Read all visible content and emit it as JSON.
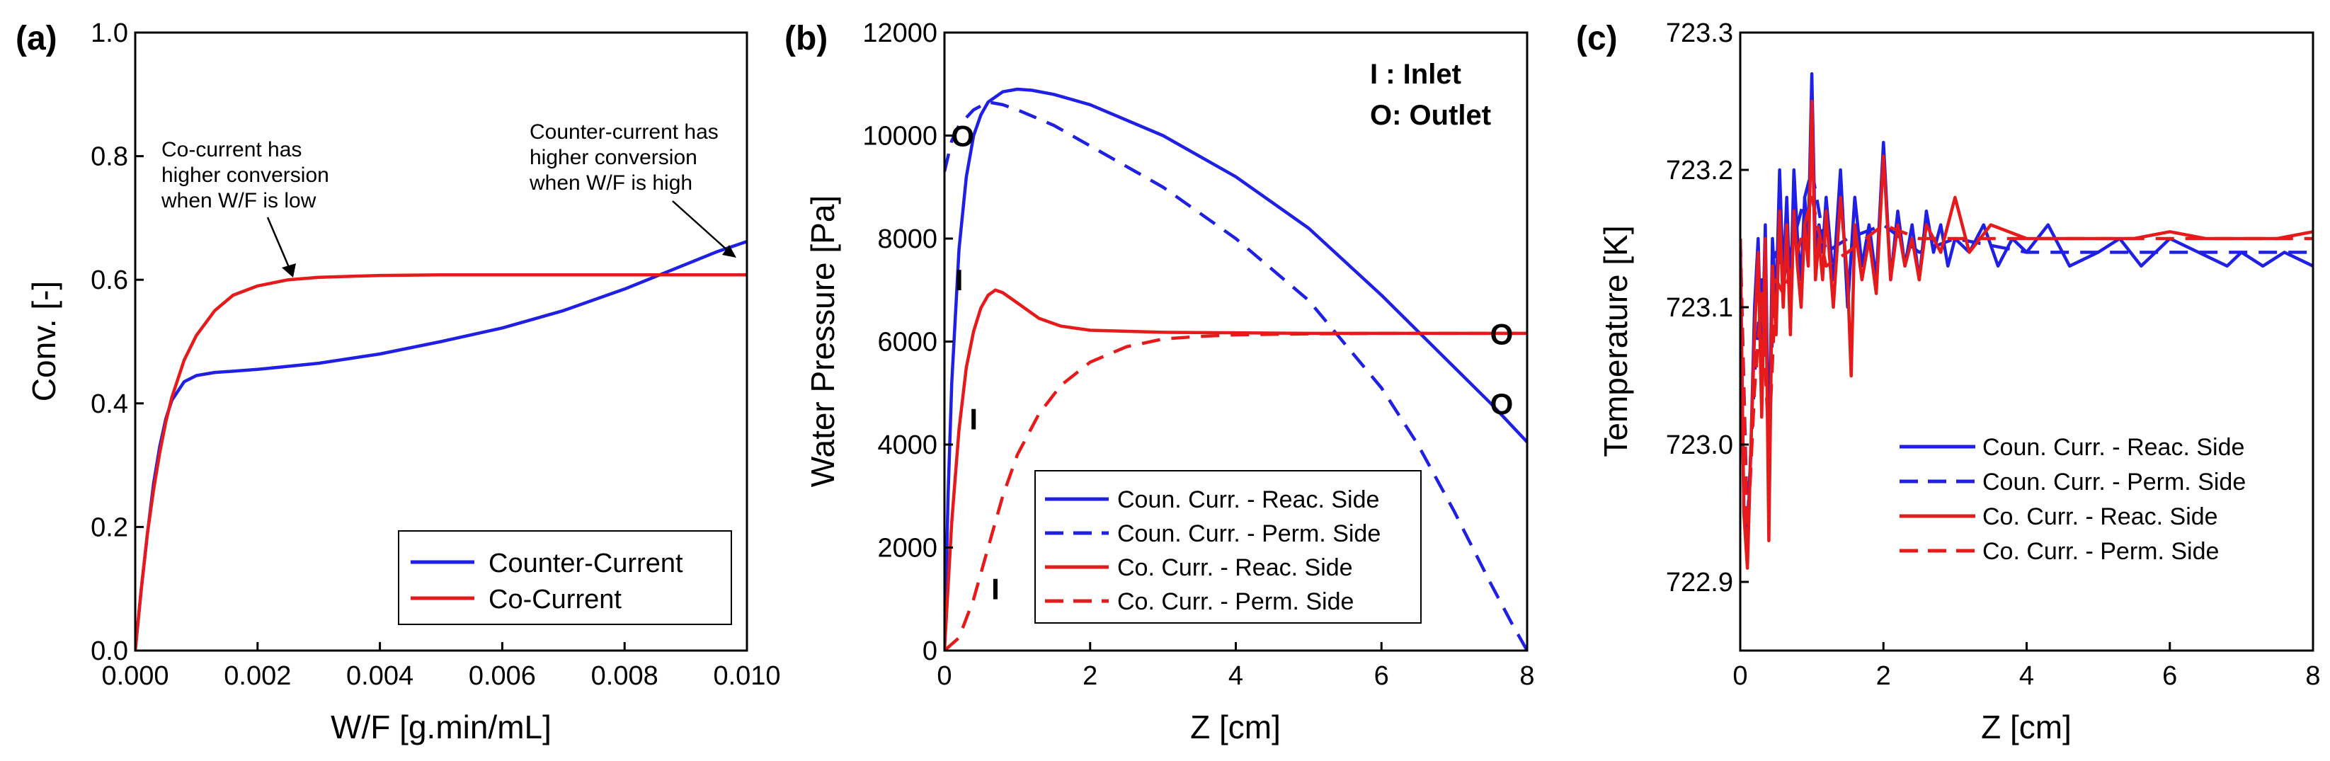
{
  "figure": {
    "panels": [
      "(a)",
      "(b)",
      "(c)"
    ]
  },
  "chart_data": [
    {
      "panel": "(a)",
      "type": "line",
      "xlabel": "W/F [g.min/mL]",
      "ylabel": "Conv. [-]",
      "xlim": [
        0,
        0.01
      ],
      "ylim": [
        0,
        1.0
      ],
      "xticks": [
        0,
        0.002,
        0.004,
        0.006,
        0.008,
        0.01
      ],
      "xtick_labels": [
        "0.000",
        "0.002",
        "0.004",
        "0.006",
        "0.008",
        "0.010"
      ],
      "yticks": [
        0,
        0.2,
        0.4,
        0.6,
        0.8,
        1.0
      ],
      "ytick_labels": [
        "0.0",
        "0.2",
        "0.4",
        "0.6",
        "0.8",
        "1.0"
      ],
      "legend_position": "bottom-right",
      "series": [
        {
          "name": "Counter-Current",
          "color": "#1f1fe6",
          "dash": "solid",
          "x": [
            0,
            0.0001,
            0.0002,
            0.0003,
            0.0004,
            0.0005,
            0.0006,
            0.0008,
            0.001,
            0.0013,
            0.0016,
            0.002,
            0.003,
            0.004,
            0.005,
            0.006,
            0.007,
            0.008,
            0.009,
            0.0095,
            0.01
          ],
          "values": [
            0,
            0.1,
            0.19,
            0.27,
            0.33,
            0.375,
            0.405,
            0.435,
            0.445,
            0.45,
            0.452,
            0.455,
            0.465,
            0.48,
            0.5,
            0.522,
            0.55,
            0.585,
            0.625,
            0.645,
            0.662
          ]
        },
        {
          "name": "Co-Current",
          "color": "#e61a1a",
          "dash": "solid",
          "x": [
            0,
            0.0001,
            0.0002,
            0.0003,
            0.0004,
            0.0005,
            0.0006,
            0.0008,
            0.001,
            0.0013,
            0.0016,
            0.002,
            0.0025,
            0.003,
            0.004,
            0.005,
            0.006,
            0.007,
            0.008,
            0.009,
            0.01
          ],
          "values": [
            0,
            0.1,
            0.19,
            0.26,
            0.32,
            0.37,
            0.41,
            0.47,
            0.51,
            0.55,
            0.575,
            0.59,
            0.6,
            0.604,
            0.607,
            0.608,
            0.608,
            0.608,
            0.608,
            0.608,
            0.608
          ]
        }
      ],
      "annotations": [
        {
          "lines": [
            "Co-current has",
            "higher conversion",
            "when W/F is low"
          ],
          "arrow_to": [
            0.0025,
            0.605
          ]
        },
        {
          "lines": [
            "Counter-current has",
            "higher conversion",
            "when W/F is high"
          ],
          "arrow_to": [
            0.01,
            0.655
          ]
        }
      ]
    },
    {
      "panel": "(b)",
      "type": "line",
      "xlabel": "Z [cm]",
      "ylabel": "Water Pressure [Pa]",
      "xlim": [
        0,
        8
      ],
      "ylim": [
        0,
        12000
      ],
      "xticks": [
        0,
        2,
        4,
        6,
        8
      ],
      "xtick_labels": [
        "0",
        "2",
        "4",
        "6",
        "8"
      ],
      "yticks": [
        0,
        2000,
        4000,
        6000,
        8000,
        10000,
        12000
      ],
      "ytick_labels": [
        "0",
        "2000",
        "4000",
        "6000",
        "8000",
        "10000",
        "12000"
      ],
      "io_legend": [
        "I : Inlet",
        "O: Outlet"
      ],
      "legend_position": "bottom-center",
      "series": [
        {
          "name": "Coun. Curr. - Reac. Side",
          "color": "#1f1fe6",
          "dash": "solid",
          "x": [
            0,
            0.05,
            0.1,
            0.2,
            0.3,
            0.4,
            0.5,
            0.6,
            0.8,
            1.0,
            1.2,
            1.5,
            2,
            3,
            4,
            5,
            6,
            7,
            7.5,
            8
          ],
          "values": [
            0,
            3000,
            5200,
            7800,
            9200,
            10000,
            10400,
            10650,
            10850,
            10900,
            10880,
            10800,
            10600,
            10000,
            9200,
            8200,
            6900,
            5500,
            4800,
            4050
          ]
        },
        {
          "name": "Coun. Curr. - Perm. Side",
          "color": "#1f1fe6",
          "dash": "dashed",
          "x": [
            0,
            0.1,
            0.2,
            0.4,
            0.6,
            0.8,
            1.0,
            1.5,
            2,
            3,
            4,
            5,
            6,
            6.5,
            7,
            7.5,
            7.8,
            8
          ],
          "values": [
            9300,
            9900,
            10200,
            10500,
            10650,
            10600,
            10500,
            10200,
            9800,
            9000,
            8000,
            6800,
            5100,
            4000,
            2700,
            1300,
            500,
            0
          ]
        },
        {
          "name": "Co. Curr. - Reac. Side",
          "color": "#e61a1a",
          "dash": "solid",
          "x": [
            0,
            0.1,
            0.2,
            0.3,
            0.4,
            0.5,
            0.6,
            0.7,
            0.8,
            1.0,
            1.3,
            1.6,
            2,
            3,
            4,
            5,
            6,
            7,
            8
          ],
          "values": [
            0,
            2500,
            4300,
            5500,
            6200,
            6650,
            6900,
            7000,
            6950,
            6750,
            6450,
            6300,
            6220,
            6180,
            6170,
            6160,
            6160,
            6160,
            6160
          ]
        },
        {
          "name": "Co. Curr. - Perm. Side",
          "color": "#e61a1a",
          "dash": "dashed",
          "x": [
            0,
            0.2,
            0.4,
            0.6,
            0.8,
            1.0,
            1.3,
            1.6,
            2,
            2.5,
            3,
            3.5,
            4,
            5,
            6,
            7,
            8
          ],
          "values": [
            0,
            250,
            1000,
            2000,
            3000,
            3800,
            4600,
            5150,
            5600,
            5900,
            6050,
            6100,
            6130,
            6150,
            6160,
            6160,
            6160
          ]
        }
      ],
      "markers": [
        {
          "text": "O",
          "x": 0.25,
          "y": 10000
        },
        {
          "text": "I",
          "x": 0.2,
          "y": 7200
        },
        {
          "text": "I",
          "x": 0.4,
          "y": 4500
        },
        {
          "text": "I",
          "x": 0.7,
          "y": 1200
        },
        {
          "text": "O",
          "x": 7.65,
          "y": 6150
        },
        {
          "text": "O",
          "x": 7.65,
          "y": 4800
        }
      ]
    },
    {
      "panel": "(c)",
      "type": "line",
      "xlabel": "Z [cm]",
      "ylabel": "Temperature [K]",
      "xlim": [
        0,
        8
      ],
      "ylim": [
        722.85,
        723.3
      ],
      "xticks": [
        0,
        2,
        4,
        6,
        8
      ],
      "xtick_labels": [
        "0",
        "2",
        "4",
        "6",
        "8"
      ],
      "yticks": [
        722.9,
        723.0,
        723.1,
        723.2,
        723.3
      ],
      "ytick_labels": [
        "722.9",
        "723.0",
        "723.1",
        "723.2",
        "723.3"
      ],
      "legend_position": "bottom-right",
      "series": [
        {
          "name": "Coun. Curr. - Reac. Side",
          "color": "#1f1fe6",
          "dash": "solid",
          "x": [
            0,
            0.05,
            0.1,
            0.15,
            0.2,
            0.25,
            0.3,
            0.35,
            0.4,
            0.45,
            0.5,
            0.55,
            0.6,
            0.65,
            0.7,
            0.75,
            0.8,
            0.85,
            0.9,
            0.95,
            1.0,
            1.05,
            1.1,
            1.15,
            1.2,
            1.3,
            1.4,
            1.5,
            1.6,
            1.7,
            1.8,
            1.9,
            2.0,
            2.1,
            2.2,
            2.3,
            2.4,
            2.5,
            2.6,
            2.7,
            2.8,
            2.9,
            3.0,
            3.2,
            3.4,
            3.6,
            3.8,
            4.0,
            4.3,
            4.6,
            5.0,
            5.3,
            5.6,
            6.0,
            6.4,
            6.8,
            7.0,
            7.3,
            7.6,
            8.0
          ],
          "values": [
            723.15,
            722.95,
            722.93,
            723.0,
            723.1,
            723.15,
            723.05,
            723.16,
            722.98,
            723.15,
            723.1,
            723.2,
            723.12,
            723.18,
            723.1,
            723.2,
            723.15,
            723.12,
            723.18,
            723.15,
            723.27,
            723.14,
            723.16,
            723.14,
            723.18,
            723.12,
            723.2,
            723.1,
            723.18,
            723.13,
            723.16,
            723.12,
            723.22,
            723.12,
            723.17,
            723.13,
            723.16,
            723.12,
            723.17,
            723.14,
            723.16,
            723.13,
            723.15,
            723.14,
            723.16,
            723.13,
            723.15,
            723.14,
            723.16,
            723.13,
            723.14,
            723.15,
            723.13,
            723.15,
            723.14,
            723.13,
            723.14,
            723.13,
            723.14,
            723.13
          ]
        },
        {
          "name": "Coun. Curr. - Perm. Side",
          "color": "#1f1fe6",
          "dash": "dashed",
          "x": [
            0,
            0.1,
            0.2,
            0.3,
            0.4,
            0.5,
            0.6,
            0.8,
            1.0,
            1.2,
            1.5,
            2.0,
            2.5,
            3.0,
            4.0,
            5.0,
            6.0,
            7.0,
            8.0
          ],
          "values": [
            723.15,
            722.94,
            723.05,
            723.12,
            723.02,
            723.14,
            723.12,
            723.16,
            723.2,
            723.14,
            723.15,
            723.16,
            723.14,
            723.15,
            723.14,
            723.14,
            723.14,
            723.14,
            723.14
          ]
        },
        {
          "name": "Co. Curr. - Reac. Side",
          "color": "#e61a1a",
          "dash": "solid",
          "x": [
            0,
            0.05,
            0.1,
            0.15,
            0.2,
            0.25,
            0.3,
            0.35,
            0.4,
            0.45,
            0.5,
            0.55,
            0.6,
            0.65,
            0.7,
            0.75,
            0.8,
            0.85,
            0.9,
            0.95,
            1.0,
            1.05,
            1.1,
            1.15,
            1.2,
            1.3,
            1.4,
            1.5,
            1.55,
            1.6,
            1.7,
            1.8,
            1.9,
            2.0,
            2.1,
            2.2,
            2.3,
            2.4,
            2.5,
            2.6,
            2.8,
            3.0,
            3.2,
            3.5,
            4.0,
            4.5,
            5.0,
            5.5,
            6.0,
            6.5,
            7.0,
            7.5,
            8.0
          ],
          "values": [
            723.15,
            722.95,
            722.91,
            723.0,
            723.08,
            723.14,
            723.02,
            723.15,
            722.93,
            723.13,
            723.08,
            723.17,
            723.1,
            723.16,
            723.08,
            723.17,
            723.13,
            723.1,
            723.16,
            723.13,
            723.25,
            723.12,
            723.15,
            723.12,
            723.17,
            723.1,
            723.18,
            723.12,
            723.05,
            723.16,
            723.12,
            723.15,
            723.11,
            723.21,
            723.12,
            723.16,
            723.13,
            723.15,
            723.12,
            723.16,
            723.14,
            723.18,
            723.14,
            723.16,
            723.15,
            723.15,
            723.15,
            723.15,
            723.155,
            723.15,
            723.15,
            723.15,
            723.155
          ]
        },
        {
          "name": "Co. Curr. - Perm. Side",
          "color": "#e61a1a",
          "dash": "dashed",
          "x": [
            0,
            0.1,
            0.2,
            0.3,
            0.4,
            0.5,
            0.6,
            0.8,
            1.0,
            1.2,
            1.5,
            2.0,
            2.5,
            3.0,
            4.0,
            5.0,
            6.0,
            7.0,
            8.0
          ],
          "values": [
            723.15,
            722.93,
            723.04,
            723.11,
            723.0,
            723.12,
            723.11,
            723.14,
            723.18,
            723.13,
            723.14,
            723.16,
            723.15,
            723.15,
            723.15,
            723.15,
            723.15,
            723.15,
            723.15
          ]
        }
      ]
    }
  ]
}
